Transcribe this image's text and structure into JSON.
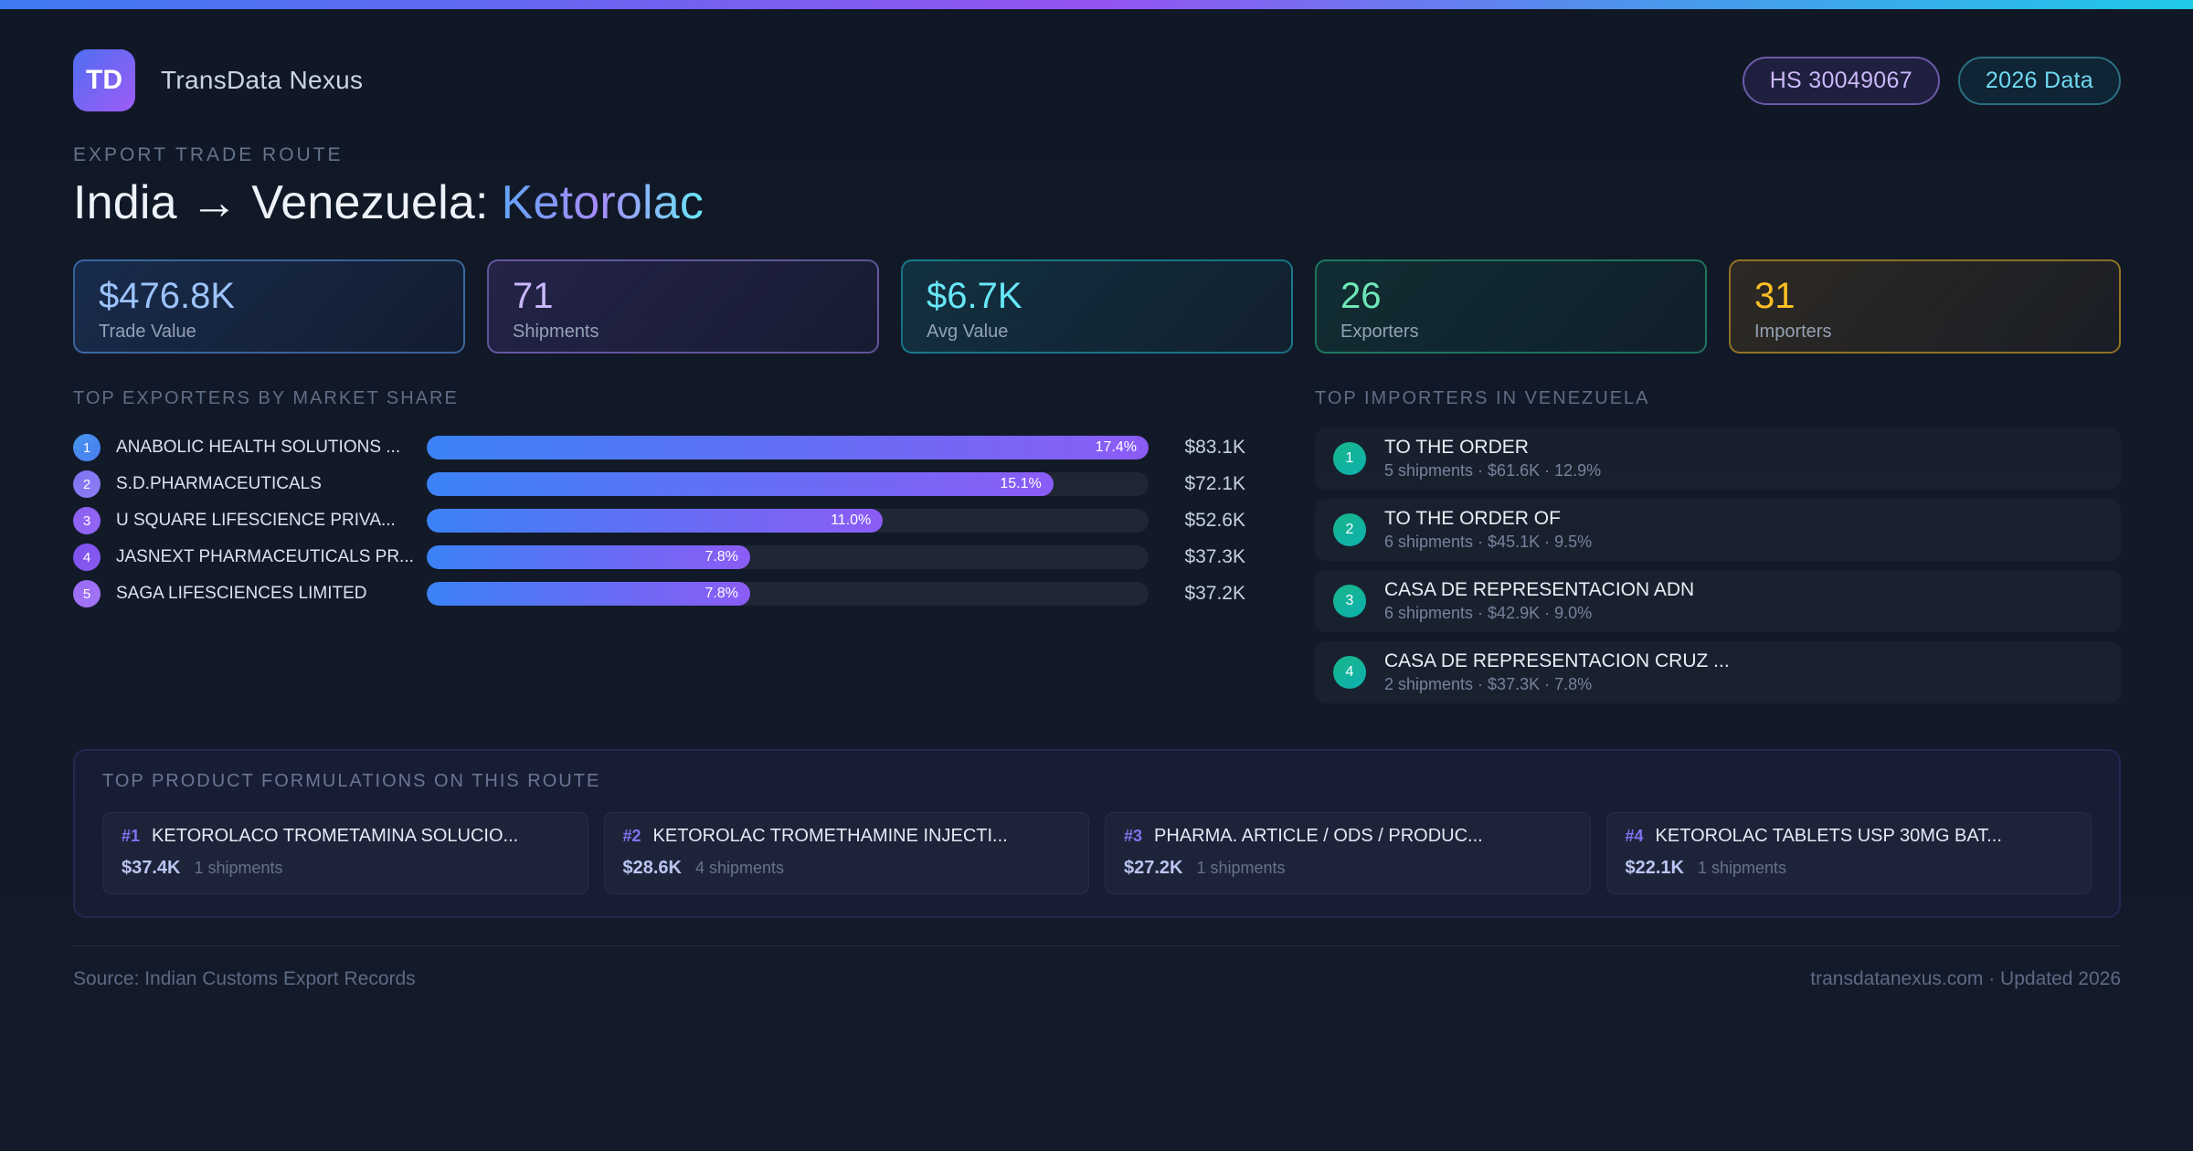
{
  "header": {
    "logo_text": "TD",
    "app_name": "TransData Nexus",
    "badges": [
      {
        "label": "HS 30049067"
      },
      {
        "label": "2026 Data"
      }
    ]
  },
  "hero": {
    "eyebrow": "EXPORT TRADE ROUTE",
    "title_prefix": "India → Venezuela:",
    "title_highlight": "Ketorolac"
  },
  "stats": [
    {
      "value": "$476.8K",
      "label": "Trade Value"
    },
    {
      "value": "71",
      "label": "Shipments"
    },
    {
      "value": "$6.7K",
      "label": "Avg Value"
    },
    {
      "value": "26",
      "label": "Exporters"
    },
    {
      "value": "31",
      "label": "Importers"
    }
  ],
  "exporters": {
    "title": "TOP EXPORTERS BY MARKET SHARE",
    "rows": [
      {
        "rank": "1",
        "name": "ANABOLIC HEALTH SOLUTIONS ...",
        "share": "17.4%",
        "value": "$83.1K",
        "bar_width_pct": 100
      },
      {
        "rank": "2",
        "name": "S.D.PHARMACEUTICALS",
        "share": "15.1%",
        "value": "$72.1K",
        "bar_width_pct": 86.8
      },
      {
        "rank": "3",
        "name": "U SQUARE LIFESCIENCE PRIVA...",
        "share": "11.0%",
        "value": "$52.6K",
        "bar_width_pct": 63.2
      },
      {
        "rank": "4",
        "name": "JASNEXT PHARMACEUTICALS PR...",
        "share": "7.8%",
        "value": "$37.3K",
        "bar_width_pct": 44.8
      },
      {
        "rank": "5",
        "name": "SAGA LIFESCIENCES LIMITED",
        "share": "7.8%",
        "value": "$37.2K",
        "bar_width_pct": 44.8
      }
    ]
  },
  "importers": {
    "title": "TOP IMPORTERS IN VENEZUELA",
    "items": [
      {
        "rank": "1",
        "name": "TO THE ORDER",
        "meta": "5 shipments · $61.6K · 12.9%"
      },
      {
        "rank": "2",
        "name": "TO THE ORDER OF",
        "meta": "6 shipments · $45.1K · 9.5%"
      },
      {
        "rank": "3",
        "name": "CASA DE REPRESENTACION ADN",
        "meta": "6 shipments · $42.9K · 9.0%"
      },
      {
        "rank": "4",
        "name": "CASA DE REPRESENTACION CRUZ ...",
        "meta": "2 shipments · $37.3K · 7.8%"
      }
    ]
  },
  "products": {
    "title": "TOP PRODUCT FORMULATIONS ON THIS ROUTE",
    "cards": [
      {
        "rank": "#1",
        "name": "KETOROLACO TROMETAMINA SOLUCIO...",
        "value": "$37.4K",
        "shipments": "1 shipments"
      },
      {
        "rank": "#2",
        "name": "KETOROLAC TROMETHAMINE INJECTI...",
        "value": "$28.6K",
        "shipments": "4 shipments"
      },
      {
        "rank": "#3",
        "name": "PHARMA. ARTICLE / ODS / PRODUC...",
        "value": "$27.2K",
        "shipments": "1 shipments"
      },
      {
        "rank": "#4",
        "name": "KETOROLAC TABLETS USP 30MG BAT...",
        "value": "$22.1K",
        "shipments": "1 shipments"
      }
    ]
  },
  "footer": {
    "source": "Source: Indian Customs Export Records",
    "site": "transdatanexus.com · Updated 2026"
  },
  "accent_colors": {
    "blue": "#3b82f6",
    "purple": "#8b5cf6",
    "cyan": "#22d3ee",
    "green": "#34d399",
    "amber": "#fbbf24",
    "importer_badge_teal": "#14b8a6",
    "background": "#121a29"
  },
  "chart_data": {
    "type": "bar",
    "orientation": "horizontal",
    "title": "TOP EXPORTERS BY MARKET SHARE",
    "categories": [
      "ANABOLIC HEALTH SOLUTIONS ...",
      "S.D.PHARMACEUTICALS",
      "U SQUARE LIFESCIENCE PRIVA...",
      "JASNEXT PHARMACEUTICALS PR...",
      "SAGA LIFESCIENCES LIMITED"
    ],
    "series": [
      {
        "name": "Market share (%)",
        "values": [
          17.4,
          15.1,
          11.0,
          7.8,
          7.8
        ]
      },
      {
        "name": "Trade value",
        "values": [
          "$83.1K",
          "$72.1K",
          "$52.6K",
          "$37.3K",
          "$37.2K"
        ]
      }
    ],
    "xlim": [
      0,
      17.4
    ],
    "legend": "none",
    "grid": false
  }
}
